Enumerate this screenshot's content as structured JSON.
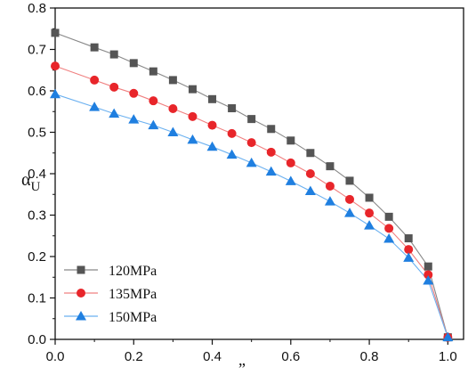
{
  "chart_data": {
    "type": "line",
    "title": "",
    "xlabel": "”",
    "ylabel_main": "α",
    "ylabel_sub": "U",
    "xlim": [
      0.0,
      1.04
    ],
    "ylim": [
      0.0,
      0.8
    ],
    "xticks": [
      "0.0",
      "0.2",
      "0.4",
      "0.6",
      "0.8",
      "1.0"
    ],
    "xtick_values": [
      0.0,
      0.2,
      0.4,
      0.6,
      0.8,
      1.0
    ],
    "yticks": [
      "0.0",
      "0.1",
      "0.2",
      "0.3",
      "0.4",
      "0.5",
      "0.6",
      "0.7",
      "0.8"
    ],
    "ytick_values": [
      0.0,
      0.1,
      0.2,
      0.3,
      0.4,
      0.5,
      0.6,
      0.7,
      0.8
    ],
    "grid": false,
    "legend_position": "bottom-left",
    "x": [
      0.0,
      0.1,
      0.15,
      0.2,
      0.25,
      0.3,
      0.35,
      0.4,
      0.45,
      0.5,
      0.55,
      0.6,
      0.65,
      0.7,
      0.75,
      0.8,
      0.85,
      0.9,
      0.95,
      1.0
    ],
    "series": [
      {
        "name": "120MPa",
        "marker": "square",
        "color": "#555555",
        "line_color": "#888888",
        "values": [
          0.74,
          0.705,
          0.688,
          0.667,
          0.647,
          0.626,
          0.604,
          0.58,
          0.558,
          0.532,
          0.508,
          0.48,
          0.45,
          0.418,
          0.383,
          0.342,
          0.296,
          0.244,
          0.176,
          0.005
        ]
      },
      {
        "name": "135MPa",
        "marker": "circle",
        "color": "#e8252a",
        "line_color": "#f08080",
        "values": [
          0.66,
          0.626,
          0.609,
          0.594,
          0.576,
          0.557,
          0.538,
          0.517,
          0.497,
          0.475,
          0.452,
          0.426,
          0.4,
          0.37,
          0.338,
          0.305,
          0.268,
          0.217,
          0.156,
          0.005
        ]
      },
      {
        "name": "150MPa",
        "marker": "triangle",
        "color": "#1f7fe0",
        "line_color": "#6ab0f0",
        "values": [
          0.592,
          0.561,
          0.545,
          0.531,
          0.517,
          0.5,
          0.482,
          0.465,
          0.446,
          0.426,
          0.405,
          0.382,
          0.358,
          0.333,
          0.305,
          0.275,
          0.243,
          0.197,
          0.142,
          0.005
        ]
      }
    ]
  }
}
